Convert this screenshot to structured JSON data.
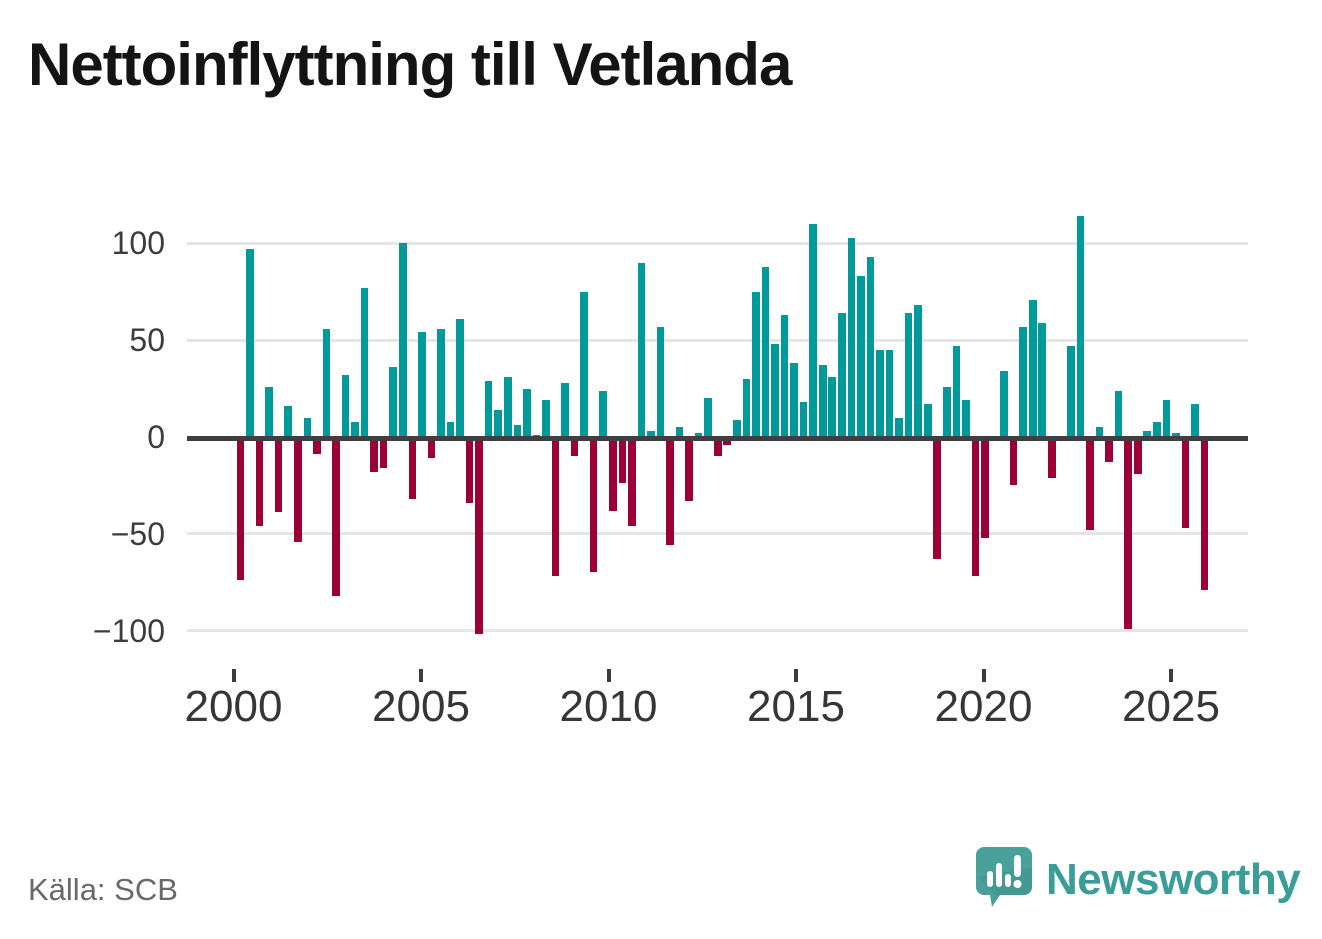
{
  "title": "Nettoinflyttning till Vetlanda",
  "source": "Källa: SCB",
  "brand": {
    "name": "Newsworthy"
  },
  "chart_data": {
    "type": "bar",
    "title": "Nettoinflyttning till Vetlanda",
    "frequency": "quarterly",
    "x_start": "2000-Q1",
    "x_end": "2025-Q2",
    "ylim": [
      -110,
      120
    ],
    "grid": true,
    "y_ticks": [
      100,
      50,
      0,
      -50,
      -100
    ],
    "y_tick_labels": [
      "100",
      "50",
      "0",
      "−50",
      "−100"
    ],
    "x_tick_years": [
      2000,
      2005,
      2010,
      2015,
      2020,
      2025
    ],
    "x_tick_labels": [
      "2000",
      "2005",
      "2010",
      "2015",
      "2020",
      "2025"
    ],
    "colors": {
      "positive": "#009a9b",
      "negative": "#9b0137"
    },
    "series": [
      {
        "name": "Nettoinflyttning",
        "values": [
          -74,
          97,
          -46,
          26,
          -39,
          16,
          -54,
          10,
          -9,
          56,
          -82,
          32,
          8,
          77,
          -18,
          -16,
          36,
          100,
          -32,
          54,
          -11,
          56,
          8,
          61,
          -34,
          -102,
          29,
          14,
          31,
          6,
          25,
          1,
          19,
          -72,
          28,
          -10,
          75,
          -70,
          24,
          -38,
          -24,
          -46,
          90,
          3,
          57,
          -56,
          5,
          -33,
          2,
          20,
          -10,
          -4,
          9,
          30,
          75,
          88,
          48,
          63,
          38,
          18,
          110,
          37,
          31,
          64,
          103,
          83,
          93,
          45,
          45,
          10,
          64,
          68,
          17,
          -63,
          26,
          47,
          19,
          -72,
          -52,
          0,
          34,
          -25,
          57,
          71,
          59,
          -21,
          0,
          47,
          114,
          -48,
          5,
          -13,
          24,
          -99,
          -19,
          3,
          8,
          19,
          2,
          -47,
          17,
          -79
        ]
      }
    ]
  }
}
